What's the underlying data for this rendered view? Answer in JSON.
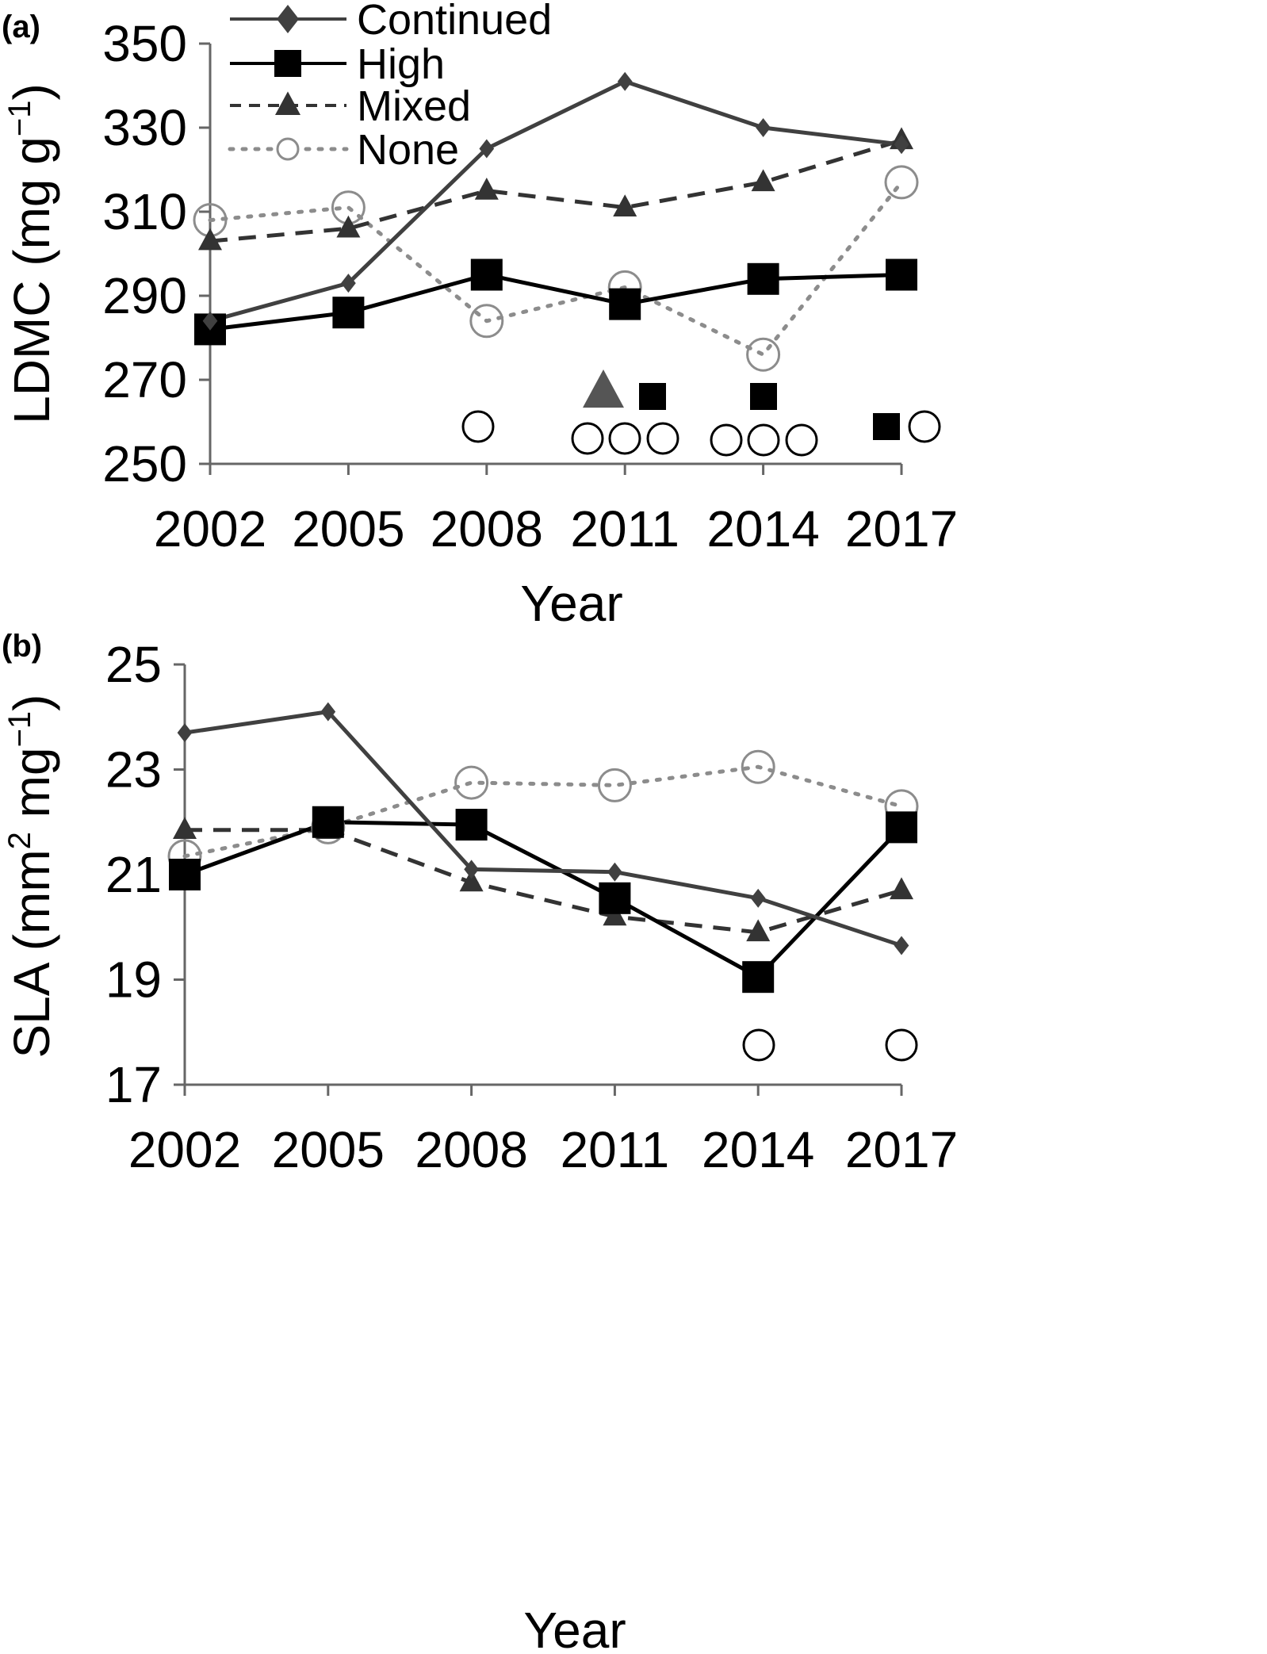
{
  "chart_data": [
    {
      "type": "line",
      "panel_label": "(a)",
      "ylabel_main": "LDMC (mg g",
      "ylabel_sup": "−1",
      "ylabel_close": ")",
      "xlabel": "Year",
      "x": [
        2002,
        2005,
        2008,
        2011,
        2014,
        2017
      ],
      "xticks": [
        "2002",
        "2005",
        "2008",
        "2011",
        "2014",
        "2017"
      ],
      "ylim": [
        250,
        350
      ],
      "yticks": [
        "250",
        "270",
        "290",
        "310",
        "330",
        "350"
      ],
      "grid": false,
      "legend_position": "top-left",
      "series": [
        {
          "name": "Continued",
          "marker": "diamond",
          "line": "solid",
          "color": "#404040",
          "values": [
            284,
            293,
            325,
            341,
            330,
            326
          ]
        },
        {
          "name": "High",
          "marker": "square",
          "line": "solid",
          "color": "#000000",
          "values": [
            282,
            286,
            295,
            288,
            294,
            295
          ]
        },
        {
          "name": "Mixed",
          "marker": "triangle",
          "line": "dashed",
          "color": "#333333",
          "values": [
            303,
            306,
            315,
            311,
            317,
            327
          ]
        },
        {
          "name": "None",
          "marker": "circle-open",
          "line": "dotted",
          "color": "#8c8c8c",
          "values": [
            308,
            311,
            284,
            292,
            276,
            317
          ]
        }
      ],
      "significance_markers": [
        {
          "x": 2008,
          "symbols": [
            "circle"
          ]
        },
        {
          "x": 2011,
          "symbols": [
            "triangle",
            "square",
            "circle",
            "circle",
            "circle"
          ]
        },
        {
          "x": 2014,
          "symbols": [
            "square",
            "circle",
            "circle",
            "circle"
          ]
        },
        {
          "x": 2017,
          "symbols": [
            "square",
            "circle"
          ]
        }
      ]
    },
    {
      "type": "line",
      "panel_label": "(b)",
      "ylabel_main": "SLA (mm",
      "ylabel_sup1": "2",
      "ylabel_mid": " mg",
      "ylabel_sup2": "−1",
      "ylabel_close": ")",
      "xlabel": "Year",
      "x": [
        2002,
        2005,
        2008,
        2011,
        2014,
        2017
      ],
      "xticks": [
        "2002",
        "2005",
        "2008",
        "2011",
        "2014",
        "2017"
      ],
      "ylim": [
        17,
        25
      ],
      "yticks": [
        "17",
        "19",
        "21",
        "23",
        "25"
      ],
      "grid": false,
      "series": [
        {
          "name": "Continued",
          "marker": "diamond",
          "line": "solid",
          "color": "#404040",
          "values": [
            23.7,
            24.1,
            21.1,
            21.05,
            20.55,
            19.65
          ]
        },
        {
          "name": "High",
          "marker": "square",
          "line": "solid",
          "color": "#000000",
          "values": [
            21.0,
            22.0,
            21.95,
            20.55,
            19.05,
            21.9
          ]
        },
        {
          "name": "Mixed",
          "marker": "triangle",
          "line": "dashed",
          "color": "#333333",
          "values": [
            21.85,
            21.85,
            20.85,
            20.2,
            19.9,
            20.7
          ]
        },
        {
          "name": "None",
          "marker": "circle-open",
          "line": "dotted",
          "color": "#8c8c8c",
          "values": [
            21.35,
            21.9,
            22.75,
            22.7,
            23.05,
            22.3
          ]
        }
      ],
      "significance_markers": [
        {
          "x": 2014,
          "symbols": [
            "circle"
          ]
        },
        {
          "x": 2017,
          "symbols": [
            "circle"
          ]
        }
      ]
    }
  ]
}
